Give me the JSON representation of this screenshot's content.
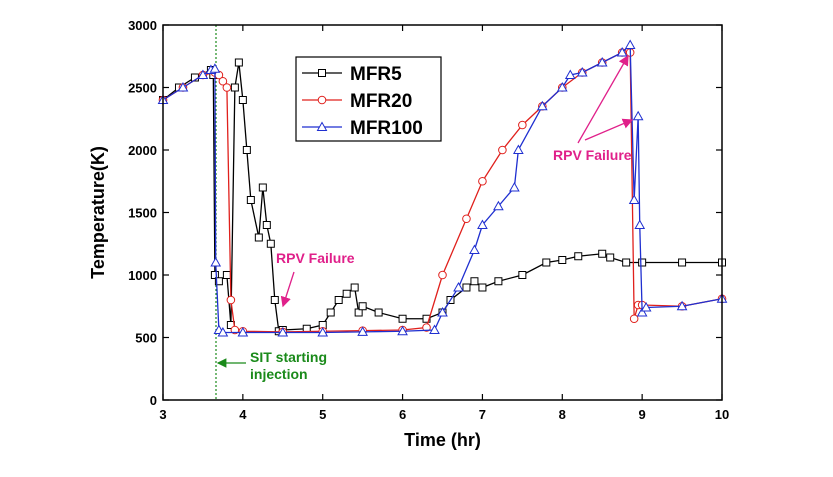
{
  "chart_data": {
    "type": "line",
    "xlabel": "Time (hr)",
    "ylabel": "Temperature(K)",
    "xlim": [
      3,
      10
    ],
    "xticks": [
      3,
      4,
      5,
      6,
      7,
      8,
      9,
      10
    ],
    "ylim": [
      0,
      3000
    ],
    "yticks": [
      0,
      500,
      1000,
      1500,
      2000,
      2500,
      3000
    ],
    "legend": "top-center",
    "series": [
      {
        "name": "MFR5",
        "color": "#000000",
        "marker": "square",
        "x": [
          3.0,
          3.2,
          3.4,
          3.6,
          3.63,
          3.65,
          3.7,
          3.8,
          3.85,
          3.9,
          3.95,
          4.0,
          4.05,
          4.1,
          4.2,
          4.25,
          4.3,
          4.35,
          4.4,
          4.45,
          4.5,
          4.8,
          5.0,
          5.1,
          5.2,
          5.3,
          5.4,
          5.45,
          5.5,
          5.7,
          6.0,
          6.3,
          6.5,
          6.6,
          6.8,
          6.9,
          7.0,
          7.2,
          7.5,
          7.8,
          8.0,
          8.2,
          8.5,
          8.6,
          8.8,
          9.0,
          9.5,
          10.0
        ],
        "values": [
          2400,
          2500,
          2580,
          2640,
          2600,
          1000,
          950,
          1000,
          600,
          2500,
          2700,
          2400,
          2000,
          1600,
          1300,
          1700,
          1400,
          1250,
          800,
          550,
          560,
          570,
          600,
          700,
          800,
          850,
          900,
          700,
          750,
          700,
          650,
          650,
          700,
          800,
          900,
          950,
          900,
          950,
          1000,
          1100,
          1120,
          1150,
          1170,
          1140,
          1100,
          1100,
          1100,
          1100
        ]
      },
      {
        "name": "MFR20",
        "color": "#e0201c",
        "marker": "circle",
        "x": [
          3.0,
          3.25,
          3.5,
          3.65,
          3.7,
          3.75,
          3.8,
          3.85,
          3.9,
          4.0,
          4.5,
          5.0,
          5.5,
          6.0,
          6.3,
          6.5,
          6.8,
          7.0,
          7.25,
          7.5,
          7.75,
          8.0,
          8.25,
          8.5,
          8.75,
          8.85,
          8.9,
          8.95,
          9.0,
          9.5,
          10.0
        ],
        "values": [
          2400,
          2500,
          2600,
          2620,
          2600,
          2550,
          2500,
          800,
          560,
          550,
          545,
          550,
          555,
          560,
          580,
          1000,
          1450,
          1750,
          2000,
          2200,
          2350,
          2500,
          2620,
          2700,
          2780,
          2780,
          650,
          760,
          760,
          750,
          810
        ]
      },
      {
        "name": "MFR100",
        "color": "#1f2fd0",
        "marker": "triangle",
        "x": [
          3.0,
          3.25,
          3.5,
          3.6,
          3.65,
          3.66,
          3.7,
          3.75,
          4.0,
          4.5,
          5.0,
          5.5,
          6.0,
          6.4,
          6.5,
          6.7,
          6.9,
          7.0,
          7.2,
          7.4,
          7.45,
          7.75,
          8.0,
          8.1,
          8.25,
          8.5,
          8.75,
          8.85,
          8.9,
          8.95,
          8.97,
          9.0,
          9.05,
          9.5,
          10.0
        ],
        "values": [
          2400,
          2500,
          2600,
          2640,
          2650,
          1100,
          560,
          540,
          540,
          540,
          540,
          545,
          550,
          560,
          700,
          900,
          1200,
          1400,
          1550,
          1700,
          2000,
          2350,
          2500,
          2600,
          2620,
          2700,
          2780,
          2840,
          1600,
          2270,
          1400,
          700,
          740,
          750,
          810
        ]
      }
    ],
    "annotations": [
      {
        "text": "RPV Failure",
        "color": "#e0208a"
      },
      {
        "text": "RPV Failure",
        "color": "#e0208a"
      },
      {
        "lines": [
          "SIT starting",
          "injection"
        ],
        "color": "#1a8a1a"
      }
    ]
  }
}
